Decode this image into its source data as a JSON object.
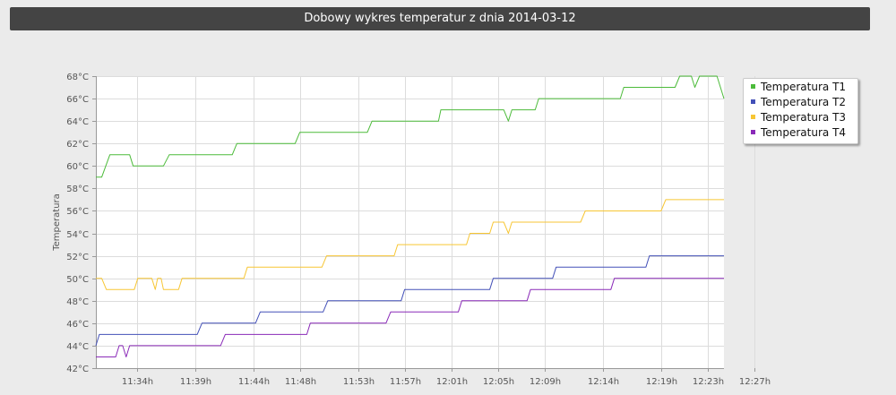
{
  "header": {
    "title": "Dobowy wykres temperatur  z dnia 2014-03-12"
  },
  "chart_data": {
    "type": "line",
    "title": "Dobowy wykres temperatur  z dnia 2014-03-12",
    "xlabel": "",
    "ylabel": "Temperatura",
    "ylim": [
      42,
      68
    ],
    "y_ticks": [
      "42°C",
      "44°C",
      "46°C",
      "48°C",
      "50°C",
      "52°C",
      "54°C",
      "56°C",
      "58°C",
      "60°C",
      "62°C",
      "64°C",
      "66°C",
      "68°C"
    ],
    "x_ticks": [
      "11:34h",
      "11:39h",
      "11:44h",
      "11:48h",
      "11:53h",
      "11:57h",
      "12:01h",
      "12:05h",
      "12:09h",
      "12:14h",
      "12:19h",
      "12:23h",
      "12:27h"
    ],
    "x_tick_minutes": [
      694,
      699,
      704,
      708,
      713,
      717,
      721,
      725,
      729,
      734,
      739,
      743,
      747
    ],
    "xlim_minutes": [
      690.5,
      744.4
    ],
    "grid": true,
    "legend_position": "right",
    "series": [
      {
        "name": "Temperatura T1",
        "color": "#4cbb3a",
        "points": [
          [
            690.5,
            59
          ],
          [
            691.0,
            59
          ],
          [
            691.7,
            61
          ],
          [
            693.4,
            61
          ],
          [
            693.7,
            60
          ],
          [
            696.3,
            60
          ],
          [
            696.8,
            61
          ],
          [
            702.2,
            61
          ],
          [
            702.6,
            62
          ],
          [
            707.6,
            62
          ],
          [
            708.0,
            63
          ],
          [
            713.8,
            63
          ],
          [
            714.2,
            64
          ],
          [
            719.9,
            64
          ],
          [
            720.1,
            65
          ],
          [
            725.5,
            65
          ],
          [
            725.9,
            64
          ],
          [
            726.2,
            65
          ],
          [
            728.2,
            65
          ],
          [
            728.5,
            66
          ],
          [
            735.5,
            66
          ],
          [
            735.8,
            67
          ],
          [
            740.2,
            67
          ],
          [
            740.6,
            68
          ],
          [
            741.6,
            68
          ],
          [
            741.9,
            67
          ],
          [
            742.3,
            68
          ],
          [
            743.8,
            68
          ],
          [
            744.4,
            66
          ]
        ]
      },
      {
        "name": "Temperatura T2",
        "color": "#4350b8",
        "points": [
          [
            690.5,
            44
          ],
          [
            690.8,
            45
          ],
          [
            699.2,
            45
          ],
          [
            699.6,
            46
          ],
          [
            704.2,
            46
          ],
          [
            704.6,
            47
          ],
          [
            710.0,
            47
          ],
          [
            710.4,
            48
          ],
          [
            716.7,
            48
          ],
          [
            717.0,
            49
          ],
          [
            724.3,
            49
          ],
          [
            724.6,
            50
          ],
          [
            729.7,
            50
          ],
          [
            730.0,
            51
          ],
          [
            737.7,
            51
          ],
          [
            738.0,
            52
          ],
          [
            744.4,
            52
          ]
        ]
      },
      {
        "name": "Temperatura T3",
        "color": "#f7c634",
        "points": [
          [
            690.5,
            50
          ],
          [
            691.0,
            50
          ],
          [
            691.4,
            49
          ],
          [
            693.8,
            49
          ],
          [
            694.1,
            50
          ],
          [
            695.3,
            50
          ],
          [
            695.6,
            49
          ],
          [
            695.8,
            50
          ],
          [
            696.1,
            50
          ],
          [
            696.3,
            49
          ],
          [
            697.6,
            49
          ],
          [
            697.9,
            50
          ],
          [
            703.2,
            50
          ],
          [
            703.5,
            51
          ],
          [
            709.9,
            51
          ],
          [
            710.3,
            52
          ],
          [
            716.1,
            52
          ],
          [
            716.4,
            53
          ],
          [
            722.3,
            53
          ],
          [
            722.6,
            54
          ],
          [
            724.3,
            54
          ],
          [
            724.6,
            55
          ],
          [
            725.5,
            55
          ],
          [
            725.9,
            54
          ],
          [
            726.2,
            55
          ],
          [
            732.1,
            55
          ],
          [
            732.5,
            56
          ],
          [
            739.0,
            56
          ],
          [
            739.4,
            57
          ],
          [
            744.4,
            57
          ]
        ]
      },
      {
        "name": "Temperatura T4",
        "color": "#8a2ab8",
        "points": [
          [
            690.5,
            43
          ],
          [
            692.2,
            43
          ],
          [
            692.5,
            44
          ],
          [
            692.8,
            44
          ],
          [
            693.1,
            43
          ],
          [
            693.4,
            44
          ],
          [
            701.2,
            44
          ],
          [
            701.6,
            45
          ],
          [
            708.6,
            45
          ],
          [
            708.9,
            46
          ],
          [
            715.4,
            46
          ],
          [
            715.8,
            47
          ],
          [
            721.6,
            47
          ],
          [
            721.9,
            48
          ],
          [
            727.5,
            48
          ],
          [
            727.8,
            49
          ],
          [
            734.7,
            49
          ],
          [
            735.0,
            50
          ],
          [
            744.4,
            50
          ]
        ]
      }
    ]
  }
}
